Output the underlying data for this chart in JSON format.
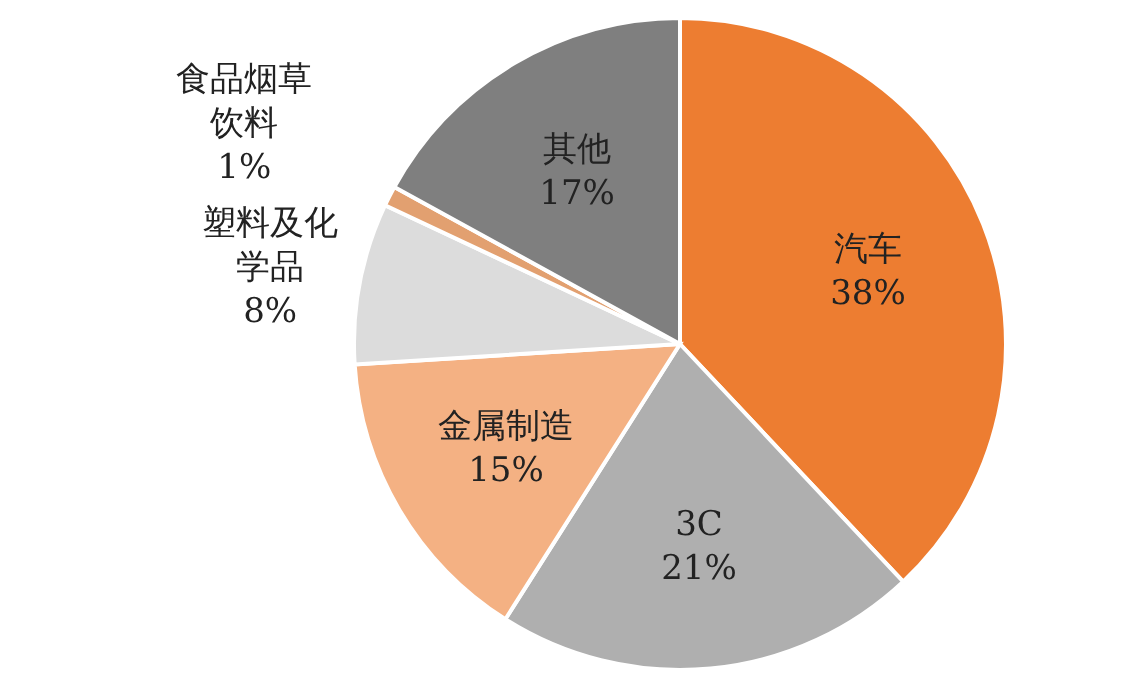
{
  "chart_data": {
    "type": "pie",
    "categories": [
      "汽车",
      "3C",
      "金属制造",
      "塑料及化学品",
      "食品烟草饮料",
      "其他"
    ],
    "values": [
      38,
      21,
      15,
      8,
      1,
      17
    ],
    "value_labels": [
      "38%",
      "21%",
      "15%",
      "8%",
      "1%",
      "17%"
    ],
    "colors": [
      "#ed7d31",
      "#afafaf",
      "#f4b183",
      "#dcdcdc",
      "#e2a070",
      "#7f7f7f"
    ],
    "legend": false
  }
}
